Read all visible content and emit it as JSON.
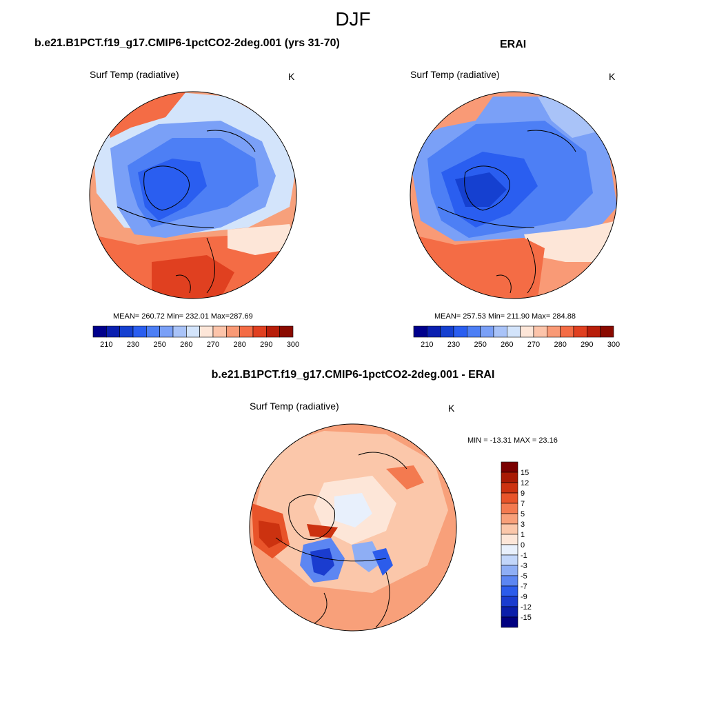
{
  "figure": {
    "season_title": "DJF",
    "bottom_title": "b.e21.B1PCT.f19_g17.CMIP6-1pctCO2-2deg.001 - ERAI"
  },
  "panels": {
    "model": {
      "title": "b.e21.B1PCT.f19_g17.CMIP6-1pctCO2-2deg.001 (yrs 31-70)",
      "variable": "Surf Temp (radiative)",
      "units": "K",
      "stats": "MEAN= 260.72  Min= 232.01  Max=287.69"
    },
    "erai": {
      "title": "ERAI",
      "variable": "Surf Temp (radiative)",
      "units": "K",
      "stats": "MEAN= 257.53  Min= 211.90  Max= 284.88"
    },
    "diff": {
      "variable": "Surf Temp (radiative)",
      "units": "K",
      "stats": "MIN = -13.31 MAX =  23.16"
    }
  },
  "temp_colorbar": {
    "colors": [
      "#00008c",
      "#0a1fb0",
      "#1540d0",
      "#2a5ef0",
      "#4d7ff5",
      "#7aa0f7",
      "#a9c3f8",
      "#d3e4fb",
      "#fde6d8",
      "#fcc4aa",
      "#f99a76",
      "#f46c45",
      "#e04020",
      "#b81e0a",
      "#8a0a00"
    ],
    "tick_labels": [
      "210",
      "230",
      "250",
      "260",
      "270",
      "280",
      "290",
      "300"
    ]
  },
  "diff_colorbar": {
    "colors": [
      "#000080",
      "#0a1eaa",
      "#1a3ccf",
      "#2c5ceb",
      "#5c86f2",
      "#8eaef5",
      "#c2d6fa",
      "#e8f0fc",
      "#fde6d8",
      "#fbc7aa",
      "#f8a07a",
      "#f37a50",
      "#e8542a",
      "#cc3210",
      "#a81a04",
      "#7a0000"
    ],
    "tick_labels": [
      "-15",
      "-12",
      "-9",
      "-7",
      "-5",
      "-3",
      "-1",
      "0",
      "1",
      "3",
      "5",
      "7",
      "9",
      "12",
      "15"
    ]
  }
}
